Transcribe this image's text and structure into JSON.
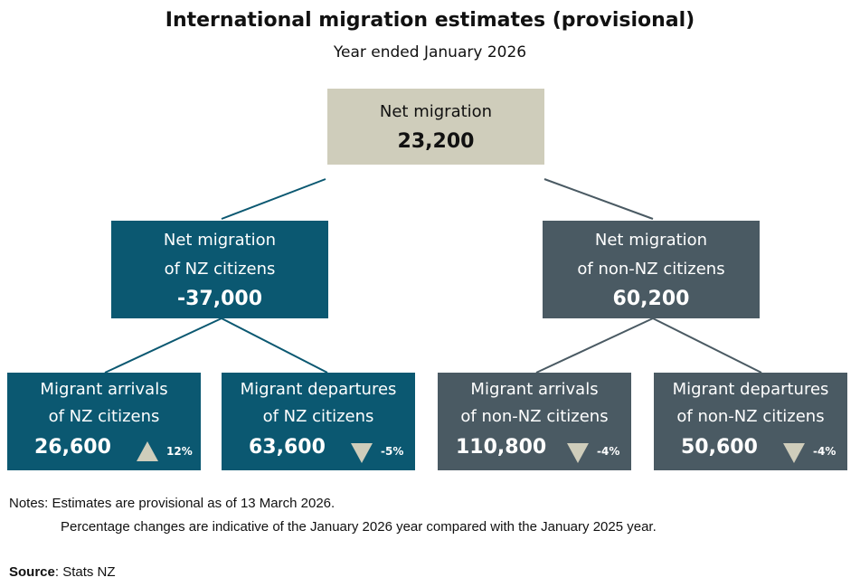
{
  "title": "International migration estimates (provisional)",
  "subtitle": "Year ended January 2026",
  "total": {
    "label": "Net migration",
    "value": "23,200"
  },
  "nz": {
    "label_line1": "Net migration",
    "label_line2": "of NZ citizens",
    "value": "-37,000"
  },
  "non_nz": {
    "label_line1": "Net migration",
    "label_line2": "of non-NZ citizens",
    "value": "60,200"
  },
  "leaves": [
    {
      "line1": "Migrant arrivals",
      "line2": "of NZ citizens",
      "value": "26,600",
      "change": "12%",
      "direction": "up"
    },
    {
      "line1": "Migrant departures",
      "line2": "of NZ citizens",
      "value": "63,600",
      "change": "-5%",
      "direction": "down"
    },
    {
      "line1": "Migrant arrivals",
      "line2": "of non-NZ citizens",
      "value": "110,800",
      "change": "-4%",
      "direction": "down"
    },
    {
      "line1": "Migrant departures",
      "line2": "of non-NZ citizens",
      "value": "50,600",
      "change": "-4%",
      "direction": "down"
    }
  ],
  "notes": {
    "line1": "Notes: Estimates are provisional as of 13 March 2026.",
    "line2": "Percentage changes are indicative of the January 2026 year compared with the January 2025 year."
  },
  "source": {
    "label": "Source",
    "text": ": Stats NZ"
  },
  "colors": {
    "nz": "#0b5871",
    "non_nz": "#4a5a63",
    "total": "#cfcdbb",
    "triangle": "#cfcdbb"
  }
}
